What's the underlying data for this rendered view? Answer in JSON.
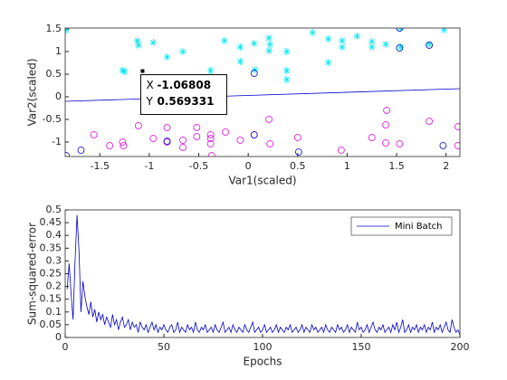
{
  "chart_data": [
    {
      "type": "scatter",
      "xlabel": "Var1(scaled)",
      "ylabel": "Var2(scaled)",
      "xlim": [
        -1.85,
        2.14
      ],
      "ylim": [
        -1.32,
        1.52
      ],
      "xticks": [
        -1.5,
        -1,
        -0.5,
        0,
        0.5,
        1,
        1.5,
        2
      ],
      "yticks": [
        -1,
        -0.5,
        0,
        0.5,
        1,
        1.5
      ],
      "series": [
        {
          "marker": "asterisk",
          "color": "#00e5ee",
          "x": [
            -1.84,
            -1.27,
            -1.25,
            -1.12,
            -1.11,
            -0.96,
            -0.82,
            -0.66,
            -0.38,
            -0.24,
            -0.08,
            -0.08,
            0.06,
            0.07,
            0.21,
            0.22,
            0.21,
            0.39,
            0.39,
            0.39,
            0.65,
            0.81,
            0.81,
            0.95,
            0.95,
            1.1,
            1.25,
            1.25,
            1.39,
            1.54,
            1.54,
            1.83,
            1.98
          ],
          "y": [
            1.48,
            0.58,
            0.56,
            1.24,
            1.14,
            1.2,
            0.88,
            1.0,
            0.58,
            1.24,
            1.1,
            0.78,
            1.18,
            0.6,
            1.3,
            1.16,
            1.02,
            1.0,
            0.58,
            0.38,
            1.42,
            1.28,
            0.76,
            1.24,
            1.1,
            1.34,
            1.22,
            1.1,
            1.16,
            1.52,
            1.1,
            1.16,
            1.48
          ]
        },
        {
          "marker": "circle",
          "color": "#e000e0",
          "x": [
            -1.56,
            -1.4,
            -1.27,
            -1.26,
            -1.11,
            -0.96,
            -0.82,
            -0.82,
            -0.66,
            -0.66,
            -0.52,
            -0.52,
            -0.38,
            -0.38,
            -0.38,
            -0.37,
            -0.23,
            -0.08,
            0.06,
            0.21,
            0.22,
            0.5,
            0.94,
            1.25,
            1.39,
            1.39,
            1.4,
            1.53,
            1.83,
            2.12,
            2.12
          ],
          "y": [
            -0.84,
            -1.08,
            -1.0,
            -1.08,
            -0.64,
            -0.92,
            -0.68,
            -1.0,
            -0.96,
            -1.12,
            -0.68,
            -0.88,
            -0.84,
            -0.92,
            -1.04,
            -1.3,
            -0.78,
            -0.96,
            -0.84,
            -0.5,
            -1.04,
            -0.9,
            -1.18,
            -0.9,
            -0.62,
            -1.02,
            -0.3,
            -1.04,
            -0.54,
            -0.66,
            -1.08
          ]
        },
        {
          "marker": "circle",
          "color": "#0000cc",
          "x": [
            -1.84,
            -1.69,
            -0.82,
            0.06,
            0.06,
            0.51,
            1.53,
            1.53,
            1.83,
            1.97
          ],
          "y": [
            -1.3,
            -1.18,
            -0.98,
            0.52,
            -0.84,
            -1.22,
            1.52,
            1.08,
            1.14,
            -1.08
          ]
        }
      ],
      "boundary": {
        "color": "#0000cc",
        "x": [
          -1.85,
          2.14
        ],
        "y": [
          -0.1,
          0.18
        ]
      },
      "datatip": {
        "x_label": "X",
        "x": -1.06808,
        "y_label": "Y",
        "y": 0.569331
      }
    },
    {
      "type": "line",
      "xlabel": "Epochs",
      "ylabel": "Sum-squared-error",
      "xlim": [
        0,
        200
      ],
      "ylim": [
        0,
        0.5
      ],
      "xticks": [
        0,
        50,
        100,
        150,
        200
      ],
      "yticks": [
        0,
        0.05,
        0.1,
        0.15,
        0.2,
        0.25,
        0.3,
        0.35,
        0.4,
        0.45,
        0.5
      ],
      "legend": "top-right",
      "series": [
        {
          "name": "Mini Batch",
          "color": "#0000cc",
          "x": [
            1,
            2,
            3,
            4,
            5,
            6,
            7,
            8,
            9,
            10,
            11,
            12,
            13,
            14,
            15,
            16,
            17,
            18,
            19,
            20,
            21,
            22,
            23,
            24,
            25,
            26,
            27,
            28,
            29,
            30,
            31,
            32,
            33,
            34,
            35,
            36,
            37,
            38,
            39,
            40,
            41,
            42,
            43,
            44,
            45,
            46,
            47,
            48,
            49,
            50,
            51,
            52,
            53,
            54,
            55,
            56,
            57,
            58,
            59,
            60,
            61,
            62,
            63,
            64,
            65,
            66,
            67,
            68,
            69,
            70,
            71,
            72,
            73,
            74,
            75,
            76,
            77,
            78,
            79,
            80,
            81,
            82,
            83,
            84,
            85,
            86,
            87,
            88,
            89,
            90,
            91,
            92,
            93,
            94,
            95,
            96,
            97,
            98,
            99,
            100,
            101,
            102,
            103,
            104,
            105,
            106,
            107,
            108,
            109,
            110,
            111,
            112,
            113,
            114,
            115,
            116,
            117,
            118,
            119,
            120,
            121,
            122,
            123,
            124,
            125,
            126,
            127,
            128,
            129,
            130,
            131,
            132,
            133,
            134,
            135,
            136,
            137,
            138,
            139,
            140,
            141,
            142,
            143,
            144,
            145,
            146,
            147,
            148,
            149,
            150,
            151,
            152,
            153,
            154,
            155,
            156,
            157,
            158,
            159,
            160,
            161,
            162,
            163,
            164,
            165,
            166,
            167,
            168,
            169,
            170,
            171,
            172,
            173,
            174,
            175,
            176,
            177,
            178,
            179,
            180,
            181,
            182,
            183,
            184,
            185,
            186,
            187,
            188,
            189,
            190,
            191,
            192,
            193,
            194,
            195,
            196,
            197,
            198,
            199,
            200
          ],
          "values": [
            0.19,
            0.29,
            0.17,
            0.07,
            0.3,
            0.48,
            0.34,
            0.1,
            0.22,
            0.16,
            0.12,
            0.09,
            0.14,
            0.08,
            0.11,
            0.06,
            0.1,
            0.07,
            0.09,
            0.05,
            0.08,
            0.06,
            0.04,
            0.09,
            0.05,
            0.07,
            0.03,
            0.06,
            0.08,
            0.04,
            0.05,
            0.07,
            0.03,
            0.06,
            0.04,
            0.05,
            0.02,
            0.06,
            0.04,
            0.03,
            0.05,
            0.02,
            0.04,
            0.06,
            0.03,
            0.05,
            0.02,
            0.04,
            0.03,
            0.05,
            0.03,
            0.02,
            0.04,
            0.05,
            0.02,
            0.03,
            0.06,
            0.02,
            0.04,
            0.03,
            0.02,
            0.05,
            0.03,
            0.04,
            0.02,
            0.06,
            0.03,
            0.02,
            0.04,
            0.03,
            0.05,
            0.02,
            0.03,
            0.04,
            0.02,
            0.05,
            0.03,
            0.02,
            0.04,
            0.06,
            0.02,
            0.03,
            0.04,
            0.02,
            0.05,
            0.03,
            0.02,
            0.04,
            0.03,
            0.02,
            0.05,
            0.03,
            0.02,
            0.04,
            0.06,
            0.02,
            0.03,
            0.04,
            0.02,
            0.03,
            0.05,
            0.02,
            0.03,
            0.04,
            0.02,
            0.03,
            0.05,
            0.02,
            0.04,
            0.03,
            0.02,
            0.04,
            0.03,
            0.05,
            0.02,
            0.03,
            0.04,
            0.02,
            0.03,
            0.05,
            0.02,
            0.04,
            0.03,
            0.02,
            0.05,
            0.03,
            0.04,
            0.02,
            0.03,
            0.04,
            0.02,
            0.05,
            0.03,
            0.02,
            0.04,
            0.03,
            0.02,
            0.05,
            0.03,
            0.04,
            0.02,
            0.03,
            0.05,
            0.02,
            0.04,
            0.03,
            0.02,
            0.06,
            0.03,
            0.04,
            0.02,
            0.03,
            0.05,
            0.02,
            0.04,
            0.06,
            0.03,
            0.02,
            0.04,
            0.03,
            0.05,
            0.02,
            0.03,
            0.04,
            0.02,
            0.05,
            0.03,
            0.06,
            0.02,
            0.04,
            0.07,
            0.02,
            0.03,
            0.05,
            0.02,
            0.04,
            0.03,
            0.05,
            0.02,
            0.04,
            0.03,
            0.05,
            0.02,
            0.04,
            0.03,
            0.06,
            0.02,
            0.04,
            0.03,
            0.05,
            0.02,
            0.04,
            0.06,
            0.03,
            0.02,
            0.07,
            0.04,
            0.02,
            0.03,
            0.01
          ]
        }
      ]
    }
  ]
}
